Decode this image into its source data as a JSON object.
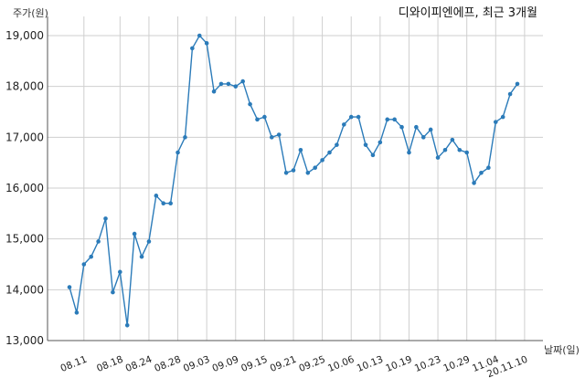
{
  "chart_data": {
    "type": "line",
    "title": "디와이피엔에프, 최근 3개월",
    "ylabel": "주가(원)",
    "xlabel": "날짜(일)",
    "ylim": [
      13000,
      19000
    ],
    "yticks": [
      13000,
      14000,
      15000,
      16000,
      17000,
      18000,
      19000
    ],
    "ytick_labels": [
      "13,000",
      "14,000",
      "15,000",
      "16,000",
      "17,000",
      "18,000",
      "19,000"
    ],
    "xtick_labels": [
      "08.11",
      "08.18",
      "08.24",
      "08.28",
      "09.03",
      "09.09",
      "09.15",
      "09.21",
      "09.25",
      "10.06",
      "10.13",
      "10.19",
      "10.23",
      "10.29",
      "11.04",
      "20.11.10"
    ],
    "xtick_index": [
      2,
      7,
      11,
      15,
      19,
      23,
      27,
      31,
      35,
      39,
      43,
      47,
      51,
      55,
      59,
      63
    ],
    "grid": true,
    "line_color": "#2b7bb9",
    "series": [
      {
        "values": [
          14050,
          13550,
          14500,
          14650,
          14950,
          15400,
          13950,
          14350,
          13300,
          15100,
          14650,
          14950,
          15850,
          15700,
          15700,
          16700,
          17000,
          18750,
          19000,
          18850,
          17900,
          18050,
          18050,
          18000,
          18100,
          17650,
          17350,
          17400,
          17000,
          17050,
          16300,
          16350,
          16750,
          16300,
          16400,
          16550,
          16700,
          16850,
          17250,
          17400,
          17400,
          16850,
          16650,
          16900,
          17350,
          17350,
          17200,
          16700,
          17200,
          17000,
          17150,
          16600,
          16750,
          16950,
          16750,
          16700,
          16100,
          16300,
          16400,
          17300,
          17400,
          17850,
          18050
        ]
      }
    ]
  }
}
